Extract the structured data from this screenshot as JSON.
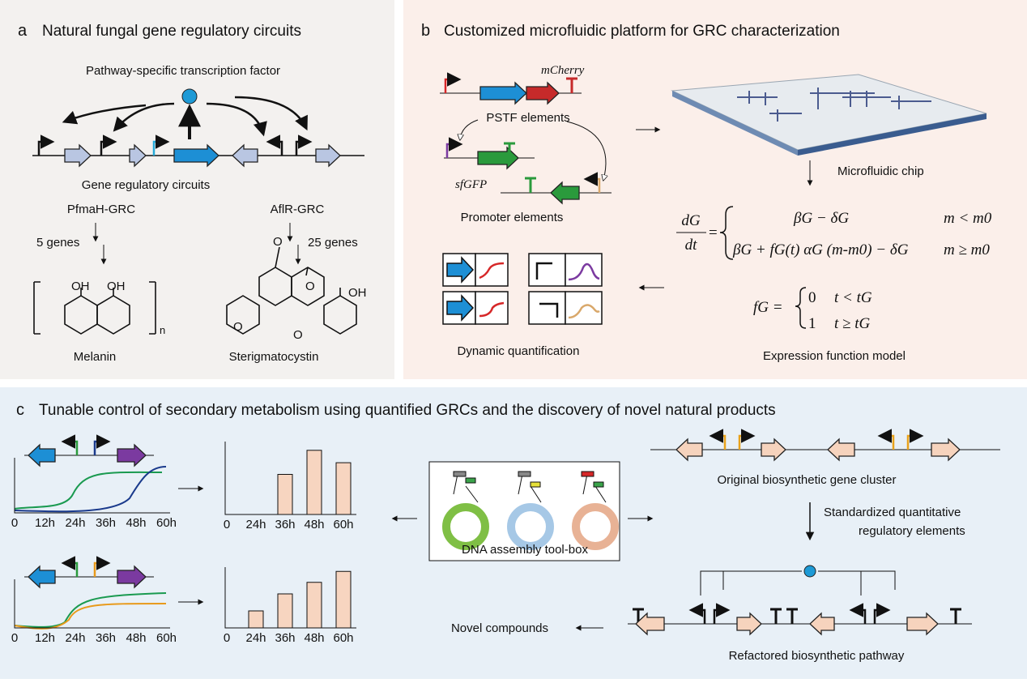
{
  "panel_a": {
    "label": "a",
    "title": "Natural fungal gene regulatory circuits",
    "tf_label": "Pathway-specific transcription factor",
    "circuit_label": "Gene regulatory circuits",
    "left_grc": {
      "name": "PfmaH-GRC",
      "genes": "5 genes",
      "product": "Melanin",
      "atoms": [
        "OH",
        "OH",
        "n"
      ]
    },
    "right_grc": {
      "name": "AflR-GRC",
      "genes": "25 genes",
      "product": "Sterigmatocystin",
      "atoms": [
        "O",
        "O",
        "OH",
        "O",
        "O"
      ]
    }
  },
  "panel_b": {
    "label": "b",
    "title": "Customized microfluidic platform for GRC characterization",
    "reporter": "mCherry",
    "pstf_label": "PSTF elements",
    "gfp": "sfGFP",
    "promoter_label": "Promoter elements",
    "chip_label": "Microfluidic chip",
    "quant_label": "Dynamic quantification",
    "model_label": "Expression function model",
    "equation": {
      "lhs_num": "dG",
      "lhs_den": "dt",
      "case1": "βG − δG",
      "case1_cond": "m < m0",
      "case2": "βG + fG(t) αG (m-m0) − δG",
      "case2_cond": "m ≥ m0",
      "f_lhs": "fG =",
      "f_case1": "0",
      "f_case1_cond": "t < tG",
      "f_case2": "1",
      "f_case2_cond": "t ≥ tG"
    }
  },
  "panel_c": {
    "label": "c",
    "title": "Tunable control of secondary metabolism using quantified GRCs and the discovery of novel natural products",
    "time_plots": [
      {
        "x_labels": [
          "0",
          "12h",
          "24h",
          "36h",
          "48h",
          "60h"
        ]
      },
      {
        "x_labels": [
          "0",
          "12h",
          "24h",
          "36h",
          "48h",
          "60h"
        ]
      }
    ],
    "bar_plots": [
      {
        "x_labels": [
          "0",
          "24h",
          "36h",
          "48h",
          "60h"
        ],
        "values": [
          0,
          0.55,
          0.88,
          0.71
        ]
      },
      {
        "x_labels": [
          "0",
          "24h",
          "36h",
          "48h",
          "60h"
        ],
        "values": [
          0.28,
          0.56,
          0.75,
          0.93
        ]
      }
    ],
    "toolbox_label": "DNA assembly tool-box",
    "original_label": "Original biosynthetic gene cluster",
    "standard_label": [
      "Standardized quantitative",
      "regulatory elements"
    ],
    "novel_label": "Novel compounds",
    "refactored_label": "Refactored biosynthetic pathway"
  }
}
